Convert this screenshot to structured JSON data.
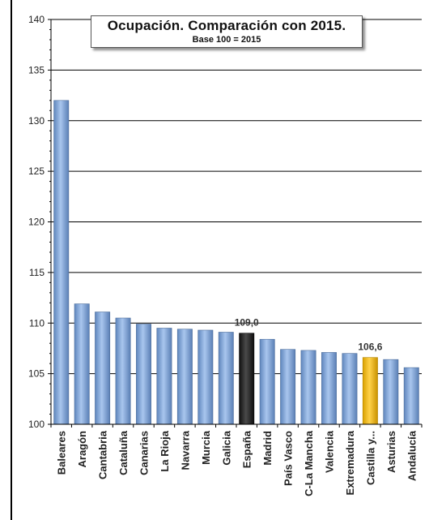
{
  "chart_data": {
    "type": "bar",
    "title": "Ocupación.  Comparación con 2015.",
    "subtitle": "Base  100 = 2015",
    "categories": [
      "Baleares",
      "Aragón",
      "Cantabria",
      "Cataluña",
      "Canarias",
      "La Rioja",
      "Navarra",
      "Murcia",
      "Galicia",
      "España",
      "Madrid",
      "País Vasco",
      "C-La Mancha",
      "Valencia",
      "Extremadura",
      "Castilla y...",
      "Asturias",
      "Andalucía"
    ],
    "values": [
      132.0,
      111.9,
      111.1,
      110.5,
      109.9,
      109.5,
      109.4,
      109.3,
      109.1,
      109.0,
      108.4,
      107.4,
      107.3,
      107.1,
      107.0,
      106.6,
      106.4,
      105.6
    ],
    "ylim": [
      100,
      140
    ],
    "yticks": [
      100,
      105,
      110,
      115,
      120,
      125,
      130,
      135,
      140
    ],
    "grid": true,
    "legend": "none",
    "data_labels": [
      {
        "category": "España",
        "text": "109,0"
      },
      {
        "category": "Castilla y...",
        "text": "106,6"
      }
    ],
    "colors": {
      "default_bar": "#8eb4e3",
      "highlight_spain": "#2b2b2b",
      "highlight_castilla": "#ffc000",
      "grid": "#000000"
    },
    "highlights": {
      "España": "highlight_spain",
      "Castilla y...": "highlight_castilla"
    }
  }
}
